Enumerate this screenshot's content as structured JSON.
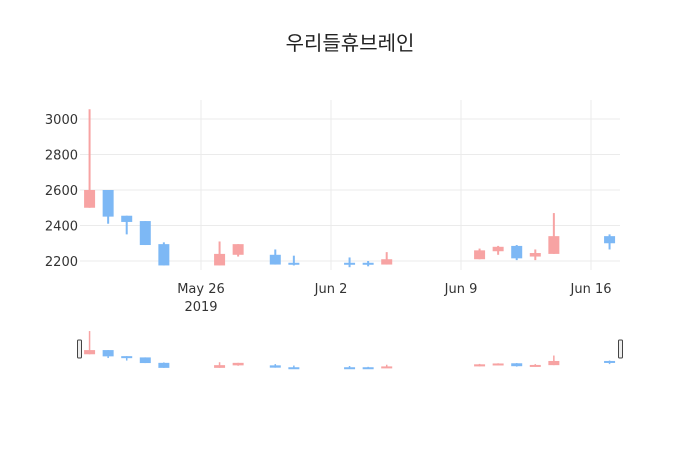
{
  "title": "우리들휴브레인",
  "colors": {
    "increasing": "#F7A3A3",
    "decreasing": "#7DB8F5",
    "grid": "#EBEBEB",
    "handle": "#444444"
  },
  "chart_data": {
    "type": "candlestick",
    "title": "우리들휴브레인",
    "xlabel": "",
    "ylabel": "",
    "ylim": [
      2130,
      3090
    ],
    "yticks": [
      2200,
      2400,
      2600,
      2800,
      3000
    ],
    "xticks": [
      {
        "date": "2019-05-26",
        "label": "May 26",
        "sublabel": "2019"
      },
      {
        "date": "2019-06-02",
        "label": "Jun 2"
      },
      {
        "date": "2019-06-09",
        "label": "Jun 9"
      },
      {
        "date": "2019-06-16",
        "label": "Jun 16"
      }
    ],
    "xrange": [
      "2019-05-19T13:00",
      "2019-06-17T12:00"
    ],
    "grid": true,
    "rangeslider": true,
    "series": [
      {
        "date": "2019-05-20",
        "open": 2500,
        "high": 3055,
        "low": 2500,
        "close": 2600
      },
      {
        "date": "2019-05-21",
        "open": 2600,
        "high": 2600,
        "low": 2410,
        "close": 2450
      },
      {
        "date": "2019-05-22",
        "open": 2455,
        "high": 2455,
        "low": 2350,
        "close": 2420
      },
      {
        "date": "2019-05-23",
        "open": 2425,
        "high": 2425,
        "low": 2290,
        "close": 2290
      },
      {
        "date": "2019-05-24",
        "open": 2295,
        "high": 2305,
        "low": 2175,
        "close": 2175
      },
      {
        "date": "2019-05-27",
        "open": 2175,
        "high": 2310,
        "low": 2175,
        "close": 2240
      },
      {
        "date": "2019-05-28",
        "open": 2235,
        "high": 2295,
        "low": 2225,
        "close": 2295
      },
      {
        "date": "2019-05-30",
        "open": 2235,
        "high": 2265,
        "low": 2180,
        "close": 2180
      },
      {
        "date": "2019-05-31",
        "open": 2190,
        "high": 2230,
        "low": 2175,
        "close": 2180
      },
      {
        "date": "2019-06-03",
        "open": 2190,
        "high": 2220,
        "low": 2165,
        "close": 2180
      },
      {
        "date": "2019-06-04",
        "open": 2190,
        "high": 2200,
        "low": 2170,
        "close": 2180
      },
      {
        "date": "2019-06-05",
        "open": 2180,
        "high": 2250,
        "low": 2180,
        "close": 2210
      },
      {
        "date": "2019-06-10",
        "open": 2210,
        "high": 2270,
        "low": 2210,
        "close": 2260
      },
      {
        "date": "2019-06-11",
        "open": 2255,
        "high": 2285,
        "low": 2235,
        "close": 2280
      },
      {
        "date": "2019-06-12",
        "open": 2285,
        "high": 2290,
        "low": 2205,
        "close": 2215
      },
      {
        "date": "2019-06-13",
        "open": 2225,
        "high": 2265,
        "low": 2205,
        "close": 2245
      },
      {
        "date": "2019-06-14",
        "open": 2240,
        "high": 2470,
        "low": 2240,
        "close": 2340
      },
      {
        "date": "2019-06-17",
        "open": 2340,
        "high": 2350,
        "low": 2265,
        "close": 2300
      }
    ]
  }
}
